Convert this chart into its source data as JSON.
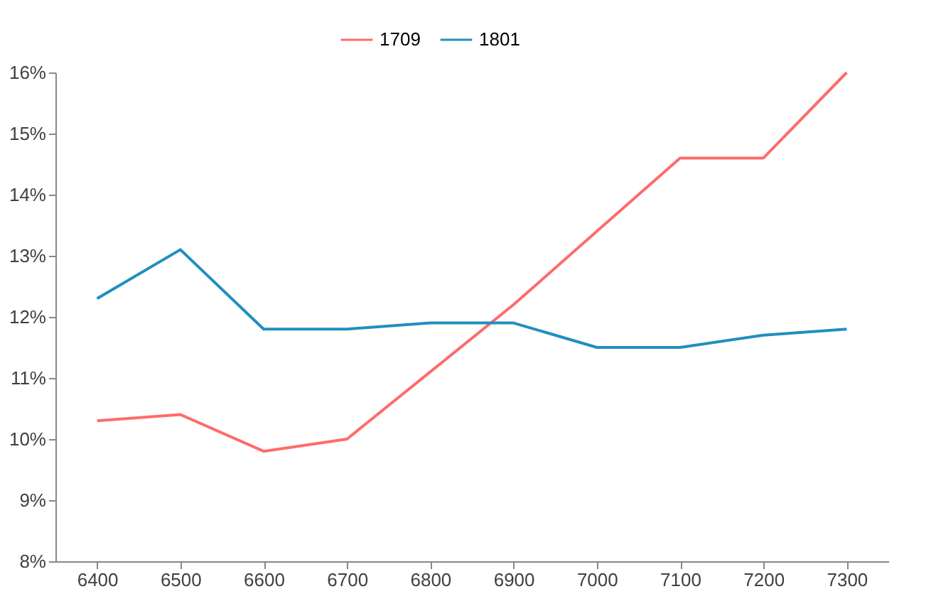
{
  "chart_data": {
    "type": "line",
    "categories": [
      "6400",
      "6500",
      "6600",
      "6700",
      "6800",
      "6900",
      "7000",
      "7100",
      "7200",
      "7300"
    ],
    "series": [
      {
        "name": "1709",
        "color": "#ff6b6b",
        "values": [
          10.3,
          10.4,
          9.8,
          10.0,
          11.1,
          12.2,
          13.4,
          14.6,
          14.6,
          16.0
        ]
      },
      {
        "name": "1801",
        "color": "#1f8fbf",
        "values": [
          12.3,
          13.1,
          11.8,
          11.8,
          11.9,
          11.9,
          11.5,
          11.5,
          11.7,
          11.8
        ]
      }
    ],
    "ylim": [
      8,
      16
    ],
    "yticks": [
      {
        "value": 8,
        "label": "8%"
      },
      {
        "value": 9,
        "label": "9%"
      },
      {
        "value": 10,
        "label": "10%"
      },
      {
        "value": 11,
        "label": "11%"
      },
      {
        "value": 12,
        "label": "12%"
      },
      {
        "value": 13,
        "label": "13%"
      },
      {
        "value": 14,
        "label": "14%"
      },
      {
        "value": 15,
        "label": "15%"
      },
      {
        "value": 16,
        "label": "16%"
      }
    ],
    "grid": false,
    "legend": "top",
    "marker": "none",
    "line_style": "solid"
  }
}
